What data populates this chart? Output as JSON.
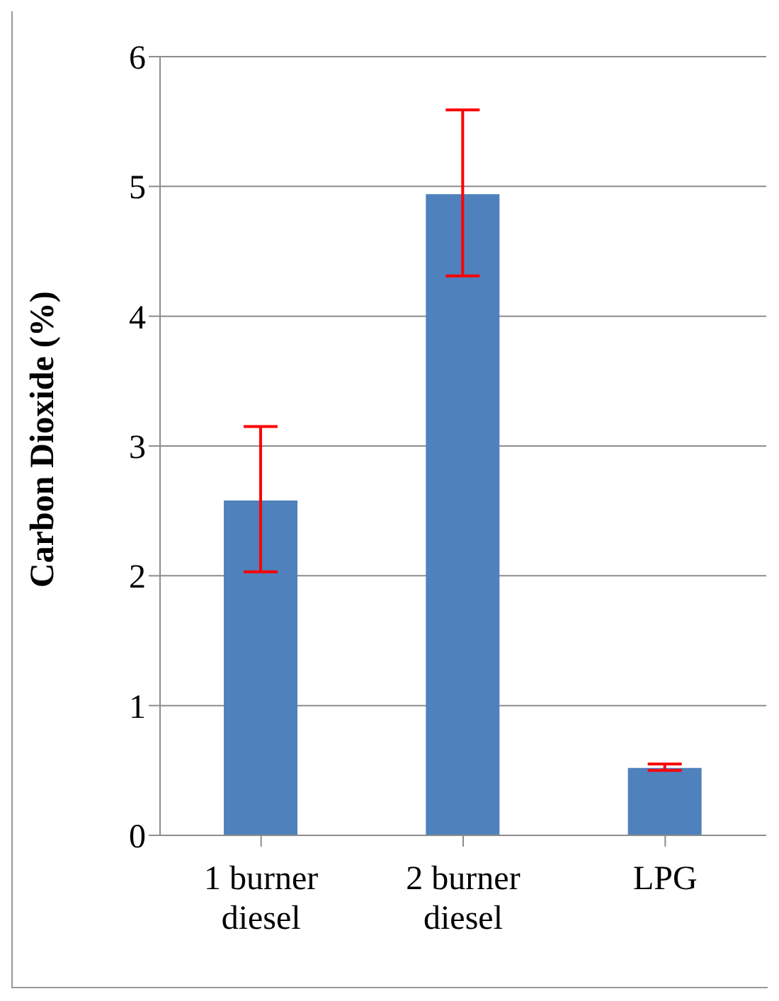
{
  "chart_data": {
    "type": "bar",
    "ylabel": "Carbon Dioxide (%)",
    "categories": [
      "1 burner diesel",
      "2 burner diesel",
      "LPG"
    ],
    "values": [
      2.58,
      4.94,
      0.52
    ],
    "errors": [
      [
        2.03,
        3.15
      ],
      [
        4.31,
        5.59
      ],
      [
        0.5,
        0.55
      ]
    ],
    "color": "#4f81bd",
    "ylim": [
      0,
      6
    ],
    "yticks": [
      0,
      1,
      2,
      3,
      4,
      5,
      6
    ],
    "grid": "y",
    "legend": false
  }
}
